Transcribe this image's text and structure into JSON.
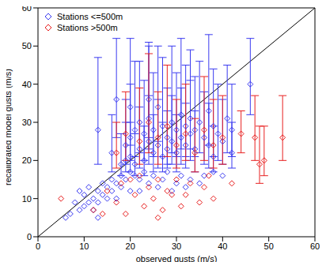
{
  "chart_data": {
    "type": "scatter",
    "x_label": "observed gusts (m/s)",
    "y_label": "recalibrated model gusts (m/s)",
    "xlim": [
      0,
      60
    ],
    "ylim": [
      0,
      60
    ],
    "xticks": [
      0,
      10,
      20,
      30,
      40,
      50,
      60
    ],
    "yticks": [
      0,
      10,
      20,
      30,
      40,
      50,
      60
    ],
    "grid": false,
    "legend": "upper left",
    "marker": "diamond",
    "series": [
      {
        "name": "Stations <=500m",
        "color": "#3a3af0",
        "points": [
          [
            7,
            6,
            null
          ],
          [
            8,
            9,
            null
          ],
          [
            9,
            7,
            null
          ],
          [
            10,
            8,
            null
          ],
          [
            10,
            11,
            null
          ],
          [
            11,
            9,
            null
          ],
          [
            12,
            10,
            null
          ],
          [
            12,
            7,
            null
          ],
          [
            13,
            12,
            null
          ],
          [
            13,
            9,
            null
          ],
          [
            14,
            11,
            null
          ],
          [
            14,
            14,
            null
          ],
          [
            15,
            10,
            null
          ],
          [
            15,
            13,
            null
          ],
          [
            16,
            12,
            null
          ],
          [
            16,
            15,
            null
          ],
          [
            17,
            14,
            null
          ],
          [
            17,
            10,
            null
          ],
          [
            18,
            16,
            null
          ],
          [
            18,
            13,
            null
          ],
          [
            19,
            15,
            null
          ],
          [
            20,
            17,
            null
          ],
          [
            20,
            12,
            null
          ],
          [
            21,
            16,
            null
          ],
          [
            22,
            15,
            null
          ],
          [
            22,
            12,
            null
          ],
          [
            23,
            17,
            null
          ],
          [
            24,
            14,
            null
          ],
          [
            25,
            16,
            null
          ],
          [
            26,
            13,
            null
          ],
          [
            27,
            15,
            null
          ],
          [
            28,
            17,
            null
          ],
          [
            29,
            12,
            null
          ],
          [
            30,
            14,
            null
          ],
          [
            31,
            16,
            null
          ],
          [
            32,
            13,
            null
          ],
          [
            33,
            15,
            null
          ],
          [
            35,
            14,
            null
          ],
          [
            36,
            16,
            null
          ],
          [
            38,
            17,
            null
          ],
          [
            40,
            16,
            null
          ],
          [
            6,
            5,
            null
          ],
          [
            9,
            12,
            null
          ],
          [
            11,
            13,
            null
          ],
          [
            13,
            5,
            null
          ],
          [
            13,
            28,
            [
              9,
              19
            ]
          ],
          [
            16,
            22,
            [
              5,
              10
            ]
          ],
          [
            18,
            19,
            [
              3,
              8
            ]
          ],
          [
            19,
            20,
            [
              3,
              10
            ]
          ],
          [
            19,
            24,
            [
              5,
              12
            ]
          ],
          [
            20,
            21,
            [
              4,
              9
            ]
          ],
          [
            20,
            26,
            [
              6,
              14
            ]
          ],
          [
            21,
            19,
            [
              3,
              8
            ]
          ],
          [
            21,
            28,
            [
              7,
              18
            ]
          ],
          [
            22,
            23,
            [
              5,
              11
            ]
          ],
          [
            22,
            30,
            [
              8,
              16
            ]
          ],
          [
            23,
            20,
            [
              4,
              9
            ]
          ],
          [
            23,
            27,
            [
              7,
              14
            ]
          ],
          [
            24,
            25,
            [
              6,
              12
            ]
          ],
          [
            24,
            31,
            [
              8,
              20
            ]
          ],
          [
            25,
            22,
            [
              5,
              10
            ]
          ],
          [
            25,
            28,
            [
              7,
              15
            ]
          ],
          [
            26,
            24,
            [
              6,
              12
            ]
          ],
          [
            26,
            34,
            [
              9,
              16
            ]
          ],
          [
            27,
            21,
            [
              4,
              9
            ]
          ],
          [
            27,
            29,
            [
              8,
              18
            ]
          ],
          [
            28,
            26,
            [
              7,
              13
            ]
          ],
          [
            28,
            23,
            [
              5,
              10
            ]
          ],
          [
            29,
            30,
            [
              8,
              20
            ]
          ],
          [
            29,
            25,
            [
              6,
              12
            ]
          ],
          [
            30,
            28,
            [
              7,
              15
            ]
          ],
          [
            30,
            22,
            [
              5,
              10
            ]
          ],
          [
            31,
            32,
            [
              9,
              20
            ]
          ],
          [
            31,
            26,
            [
              7,
              13
            ]
          ],
          [
            32,
            24,
            [
              6,
              11
            ]
          ],
          [
            32,
            29,
            [
              8,
              16
            ]
          ],
          [
            33,
            27,
            [
              7,
              14
            ]
          ],
          [
            33,
            31,
            [
              8,
              18
            ]
          ],
          [
            34,
            23,
            [
              6,
              10
            ]
          ],
          [
            34,
            28,
            [
              7,
              14
            ]
          ],
          [
            35,
            30,
            [
              8,
              16
            ]
          ],
          [
            36,
            26,
            [
              7,
              12
            ]
          ],
          [
            37,
            24,
            [
              6,
              11
            ]
          ],
          [
            37,
            33,
            [
              9,
              20
            ]
          ],
          [
            38,
            29,
            [
              8,
              15
            ]
          ],
          [
            38,
            21,
            [
              4,
              8
            ]
          ],
          [
            39,
            27,
            [
              7,
              13
            ]
          ],
          [
            40,
            25,
            [
              6,
              11
            ]
          ],
          [
            41,
            31,
            [
              9,
              14
            ]
          ],
          [
            42,
            28,
            [
              7,
              12
            ]
          ],
          [
            42,
            22,
            [
              4,
              8
            ]
          ],
          [
            46,
            40,
            [
              8,
              12
            ]
          ],
          [
            17,
            36,
            [
              10,
              16
            ]
          ],
          [
            20,
            34,
            [
              10,
              18
            ]
          ],
          [
            24,
            36,
            [
              10,
              14
            ]
          ]
        ]
      },
      {
        "name": "Stations >500m",
        "color": "#e82020",
        "points": [
          [
            5,
            10,
            null
          ],
          [
            12,
            7,
            null
          ],
          [
            14,
            6,
            null
          ],
          [
            15,
            12,
            null
          ],
          [
            17,
            9,
            null
          ],
          [
            18,
            14,
            null
          ],
          [
            19,
            6,
            null
          ],
          [
            21,
            11,
            null
          ],
          [
            22,
            16,
            null
          ],
          [
            23,
            8,
            null
          ],
          [
            24,
            13,
            null
          ],
          [
            25,
            10,
            null
          ],
          [
            26,
            15,
            null
          ],
          [
            27,
            7,
            null
          ],
          [
            28,
            12,
            null
          ],
          [
            29,
            11,
            null
          ],
          [
            30,
            15,
            null
          ],
          [
            31,
            8,
            null
          ],
          [
            32,
            11,
            null
          ],
          [
            33,
            14,
            null
          ],
          [
            35,
            9,
            null
          ],
          [
            36,
            13,
            null
          ],
          [
            37,
            16,
            null
          ],
          [
            38,
            10,
            null
          ],
          [
            42,
            14,
            null
          ],
          [
            26,
            5,
            null
          ],
          [
            20,
            15,
            null
          ],
          [
            19,
            27,
            [
              7,
              11
            ]
          ],
          [
            22,
            25,
            [
              6,
              14
            ]
          ],
          [
            24,
            30,
            [
              8,
              18
            ]
          ],
          [
            26,
            26,
            [
              7,
              12
            ]
          ],
          [
            28,
            29,
            [
              8,
              16
            ]
          ],
          [
            30,
            24,
            [
              6,
              12
            ]
          ],
          [
            32,
            27,
            [
              7,
              13
            ]
          ],
          [
            34,
            22,
            [
              5,
              9
            ]
          ],
          [
            36,
            28,
            [
              8,
              14
            ]
          ],
          [
            38,
            24,
            [
              6,
              12
            ]
          ],
          [
            40,
            26,
            [
              7,
              11
            ]
          ],
          [
            47,
            26,
            [
              6,
              11
            ]
          ],
          [
            48,
            19,
            [
              5,
              10
            ]
          ],
          [
            49,
            20,
            [
              4,
              9
            ]
          ],
          [
            53,
            26,
            [
              6,
              11
            ]
          ],
          [
            44,
            27,
            [
              5,
              6
            ]
          ],
          [
            17,
            22,
            [
              4,
              8
            ]
          ]
        ]
      }
    ]
  }
}
